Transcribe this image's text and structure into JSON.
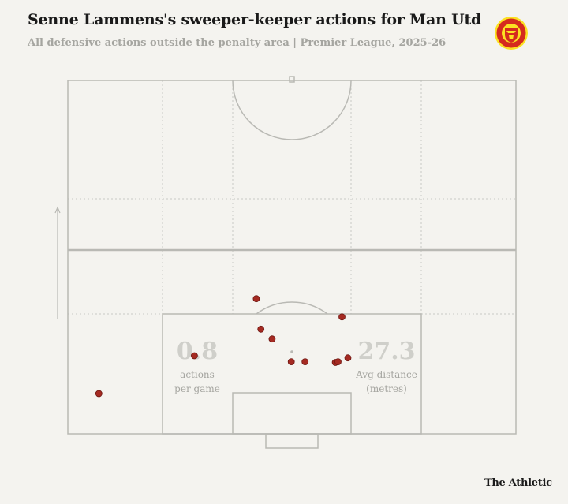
{
  "header": {
    "title": "Senne Lammens's sweeper-keeper actions for Man Utd",
    "subtitle": "All defensive actions outside the penalty area | Premier League, 2025-26"
  },
  "branding": {
    "club_badge_icon": "man-utd-crest-icon",
    "publisher": "The Athletic"
  },
  "stats": {
    "actions_value": "0.8",
    "actions_label_line1": "actions",
    "actions_label_line2": "per game",
    "distance_value": "27.3",
    "distance_label_line1": "Avg distance",
    "distance_label_line2": "(metres)"
  },
  "colors": {
    "background": "#f4f3ef",
    "pitch_line": "#b9b9b4",
    "grid_line": "#c9c9c4",
    "dot_fill": "#a52a22",
    "dot_stroke": "#6e1712",
    "badge_red": "#d52b1e",
    "badge_yellow": "#fbe122"
  },
  "chart_data": {
    "type": "scatter",
    "title": "Senne Lammens's sweeper-keeper actions for Man Utd",
    "subtitle": "All defensive actions outside the penalty area | Premier League, 2025-26",
    "xlabel": "",
    "ylabel": "",
    "x_range": [
      0,
      68
    ],
    "y_range": [
      0,
      52.5
    ],
    "grid": true,
    "series": [
      {
        "points": [
          {
            "x": 4.7,
            "y": 11.5
          },
          {
            "x": 19.2,
            "y": 22.3
          },
          {
            "x": 28.6,
            "y": 38.6
          },
          {
            "x": 29.3,
            "y": 29.9
          },
          {
            "x": 31.0,
            "y": 27.1
          },
          {
            "x": 33.9,
            "y": 20.6
          },
          {
            "x": 36.0,
            "y": 20.6
          },
          {
            "x": 40.6,
            "y": 20.4
          },
          {
            "x": 41.0,
            "y": 20.6
          },
          {
            "x": 41.6,
            "y": 33.4
          },
          {
            "x": 42.5,
            "y": 21.7
          }
        ]
      }
    ]
  }
}
